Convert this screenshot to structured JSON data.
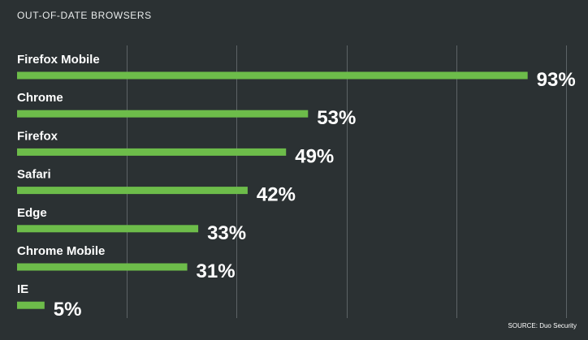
{
  "colors": {
    "background": "#2b3133",
    "bar": "#6dbc4a",
    "grid": "#5c6366",
    "text": "#ffffff"
  },
  "source": "SOURCE: Duo Security",
  "chart_data": {
    "type": "bar",
    "orientation": "horizontal",
    "title": "OUT-OF-DATE BROWSERS",
    "categories": [
      "Firefox Mobile",
      "Chrome",
      "Firefox",
      "Safari",
      "Edge",
      "Chrome Mobile",
      "IE"
    ],
    "values": [
      93,
      53,
      49,
      42,
      33,
      31,
      5
    ],
    "value_labels": [
      "93%",
      "53%",
      "49%",
      "42%",
      "33%",
      "31%",
      "5%"
    ],
    "unit": "%",
    "xlim": [
      0,
      100
    ],
    "gridlines": [
      20,
      40,
      60,
      80,
      100
    ],
    "grid": true,
    "legend": "none"
  }
}
